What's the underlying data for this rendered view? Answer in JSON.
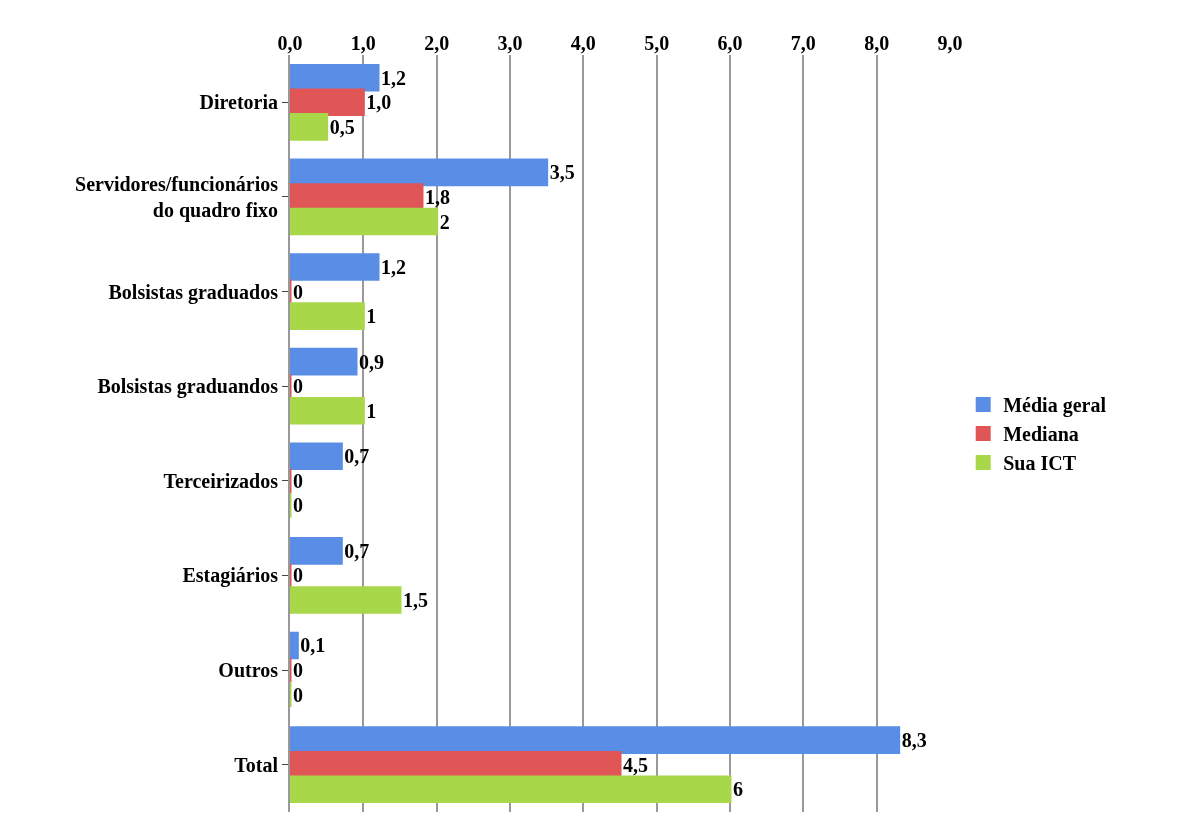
{
  "chart_data": {
    "type": "bar",
    "orientation": "horizontal",
    "categories": [
      "Diretoria",
      "Servidores/funcionários do quadro fixo",
      "Bolsistas graduados",
      "Bolsistas graduandos",
      "Terceirizados",
      "Estagiários",
      "Outros",
      "Total"
    ],
    "series": [
      {
        "name": "Média geral",
        "color": "#5a8ee6",
        "values": [
          1.2,
          3.5,
          1.2,
          0.9,
          0.7,
          0.7,
          0.1,
          8.3
        ],
        "value_labels": [
          "1,2",
          "3,5",
          "1,2",
          "0,9",
          "0,7",
          "0,7",
          "0,1",
          "8,3"
        ]
      },
      {
        "name": "Mediana",
        "color": "#e05555",
        "values": [
          1.0,
          1.8,
          0,
          0,
          0,
          0,
          0,
          4.5
        ],
        "value_labels": [
          "1,0",
          "1,8",
          "0",
          "0",
          "0",
          "0",
          "0",
          "4,5"
        ]
      },
      {
        "name": "Sua ICT",
        "color": "#a8d84a",
        "values": [
          0.5,
          2,
          1,
          1,
          0,
          1.5,
          0,
          6
        ],
        "value_labels": [
          "0,5",
          "2",
          "1",
          "1",
          "0",
          "1,5",
          "0",
          "6"
        ]
      }
    ],
    "xlim": [
      0,
      9
    ],
    "xticks": [
      {
        "value": 0,
        "label": "0,0"
      },
      {
        "value": 1,
        "label": "1,0"
      },
      {
        "value": 2,
        "label": "2,0"
      },
      {
        "value": 3,
        "label": "3,0"
      },
      {
        "value": 4,
        "label": "4,0"
      },
      {
        "value": 5,
        "label": "5,0"
      },
      {
        "value": 6,
        "label": "6,0"
      },
      {
        "value": 7,
        "label": "7,0"
      },
      {
        "value": 8,
        "label": "8,0"
      },
      {
        "value": 9,
        "label": "9,0"
      }
    ],
    "grid": "x",
    "legend": "right"
  }
}
